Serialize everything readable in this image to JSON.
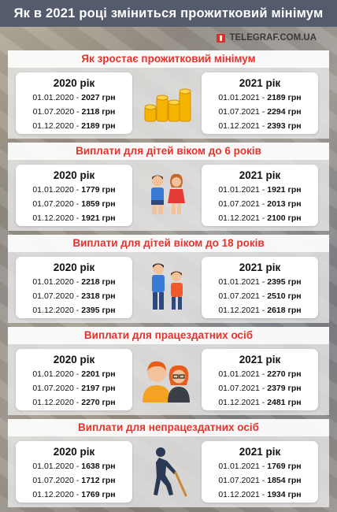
{
  "title": "Як в 2021 році зміниться прожитковий мінімум",
  "source": "TELEGRAF.COM.UA",
  "sections": [
    {
      "heading": "Як зростає прожитковий мінімум",
      "icon": "coins-icon",
      "left": {
        "year": "2020 рік",
        "rows": [
          {
            "date": "01.01.2020 - ",
            "value": "2027",
            "unit": " грн"
          },
          {
            "date": "01.07.2020 - ",
            "value": "2118",
            "unit": " грн"
          },
          {
            "date": "01.12.2020 - ",
            "value": "2189",
            "unit": " грн"
          }
        ]
      },
      "right": {
        "year": "2021 рік",
        "rows": [
          {
            "date": "01.01.2021 - ",
            "value": "2189",
            "unit": " грн"
          },
          {
            "date": "01.07.2021 - ",
            "value": "2294",
            "unit": " грн"
          },
          {
            "date": "01.12.2021 - ",
            "value": "2393",
            "unit": " грн"
          }
        ]
      }
    },
    {
      "heading": "Виплати для дітей віком до 6 років",
      "icon": "small-children-icon",
      "left": {
        "year": "2020 рік",
        "rows": [
          {
            "date": "01.01.2020 - ",
            "value": "1779",
            "unit": " грн"
          },
          {
            "date": "01.07.2020 - ",
            "value": "1859",
            "unit": " грн"
          },
          {
            "date": "01.12.2020 - ",
            "value": "1921",
            "unit": " грн"
          }
        ]
      },
      "right": {
        "year": "2021 рік",
        "rows": [
          {
            "date": "01.01.2021 - ",
            "value": "1921",
            "unit": " грн"
          },
          {
            "date": "01.07.2021 - ",
            "value": "2013",
            "unit": " грн"
          },
          {
            "date": "01.12.2021 - ",
            "value": "2100",
            "unit": " грн"
          }
        ]
      }
    },
    {
      "heading": "Виплати для дітей віком до 18 років",
      "icon": "teenagers-icon",
      "left": {
        "year": "2020 рік",
        "rows": [
          {
            "date": "01.01.2020 - ",
            "value": "2218",
            "unit": " грн"
          },
          {
            "date": "01.07.2020 - ",
            "value": "2318",
            "unit": " грн"
          },
          {
            "date": "01.12.2020 - ",
            "value": "2395",
            "unit": " грн"
          }
        ]
      },
      "right": {
        "year": "2021 рік",
        "rows": [
          {
            "date": "01.01.2021 - ",
            "value": "2395",
            "unit": " грн"
          },
          {
            "date": "01.07.2021 - ",
            "value": "2510",
            "unit": " грн"
          },
          {
            "date": "01.12.2021 - ",
            "value": "2618",
            "unit": " грн"
          }
        ]
      }
    },
    {
      "heading": "Виплати для працездатних осіб",
      "icon": "adults-icon",
      "left": {
        "year": "2020 рік",
        "rows": [
          {
            "date": "01.01.2020 - ",
            "value": "2201",
            "unit": " грн"
          },
          {
            "date": "01.07.2020 - ",
            "value": "2197",
            "unit": " грн"
          },
          {
            "date": "01.12.2020 - ",
            "value": "2270",
            "unit": " грн"
          }
        ]
      },
      "right": {
        "year": "2021 рік",
        "rows": [
          {
            "date": "01.01.2021 - ",
            "value": "2270",
            "unit": " грн"
          },
          {
            "date": "01.07.2021 - ",
            "value": "2379",
            "unit": " грн"
          },
          {
            "date": "01.12.2021 - ",
            "value": "2481",
            "unit": " грн"
          }
        ]
      }
    },
    {
      "heading": "Виплати для непрацездатних осіб",
      "icon": "elderly-with-cane-icon",
      "left": {
        "year": "2020 рік",
        "rows": [
          {
            "date": "01.01.2020 - ",
            "value": "1638",
            "unit": " грн"
          },
          {
            "date": "01.07.2020 - ",
            "value": "1712",
            "unit": " грн"
          },
          {
            "date": "01.12.2020 - ",
            "value": "1769",
            "unit": " грн"
          }
        ]
      },
      "right": {
        "year": "2021 рік",
        "rows": [
          {
            "date": "01.01.2021 - ",
            "value": "1769",
            "unit": " грн"
          },
          {
            "date": "01.07.2021 - ",
            "value": "1854",
            "unit": " грн"
          },
          {
            "date": "01.12.2021 - ",
            "value": "1934",
            "unit": " грн"
          }
        ]
      }
    }
  ],
  "colors": {
    "title_bar": "#545b6c",
    "heading": "#e5322d",
    "logo": "#d9302a"
  }
}
